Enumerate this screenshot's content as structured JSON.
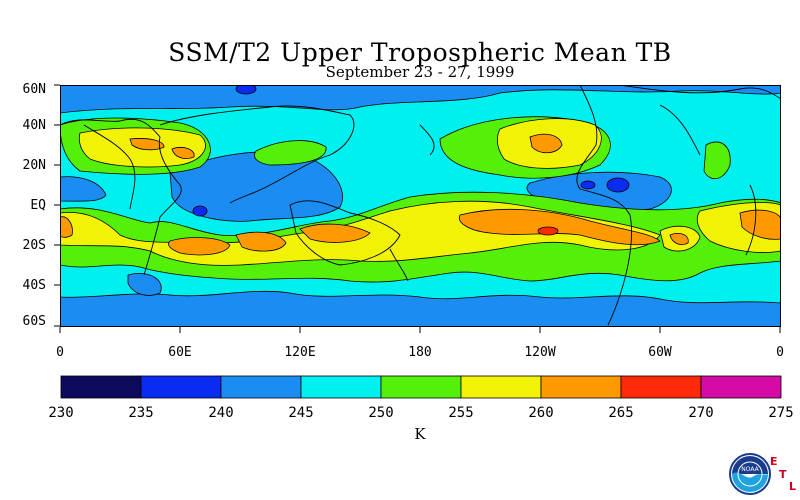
{
  "title": "SSM/T2 Upper Tropospheric Mean TB",
  "subtitle": "September 23 - 27, 1999",
  "lat_labels": [
    "60N",
    "40N",
    "20N",
    "EQ",
    "20S",
    "40S",
    "60S"
  ],
  "lon_labels": [
    "0",
    "60E",
    "120E",
    "180",
    "120W",
    "60W",
    "0"
  ],
  "colorbar": {
    "ticks": [
      "230",
      "235",
      "240",
      "245",
      "250",
      "255",
      "260",
      "265",
      "270",
      "275"
    ],
    "colors": [
      "#0b0a5c",
      "#0a2bf2",
      "#1b8cf1",
      "#00f0f0",
      "#55f00a",
      "#f2f205",
      "#ff9900",
      "#ff2a0a",
      "#d60aa6"
    ],
    "units": "K"
  },
  "logo": {
    "name": "NOAA",
    "letters": [
      "E",
      "T",
      "L"
    ]
  }
}
